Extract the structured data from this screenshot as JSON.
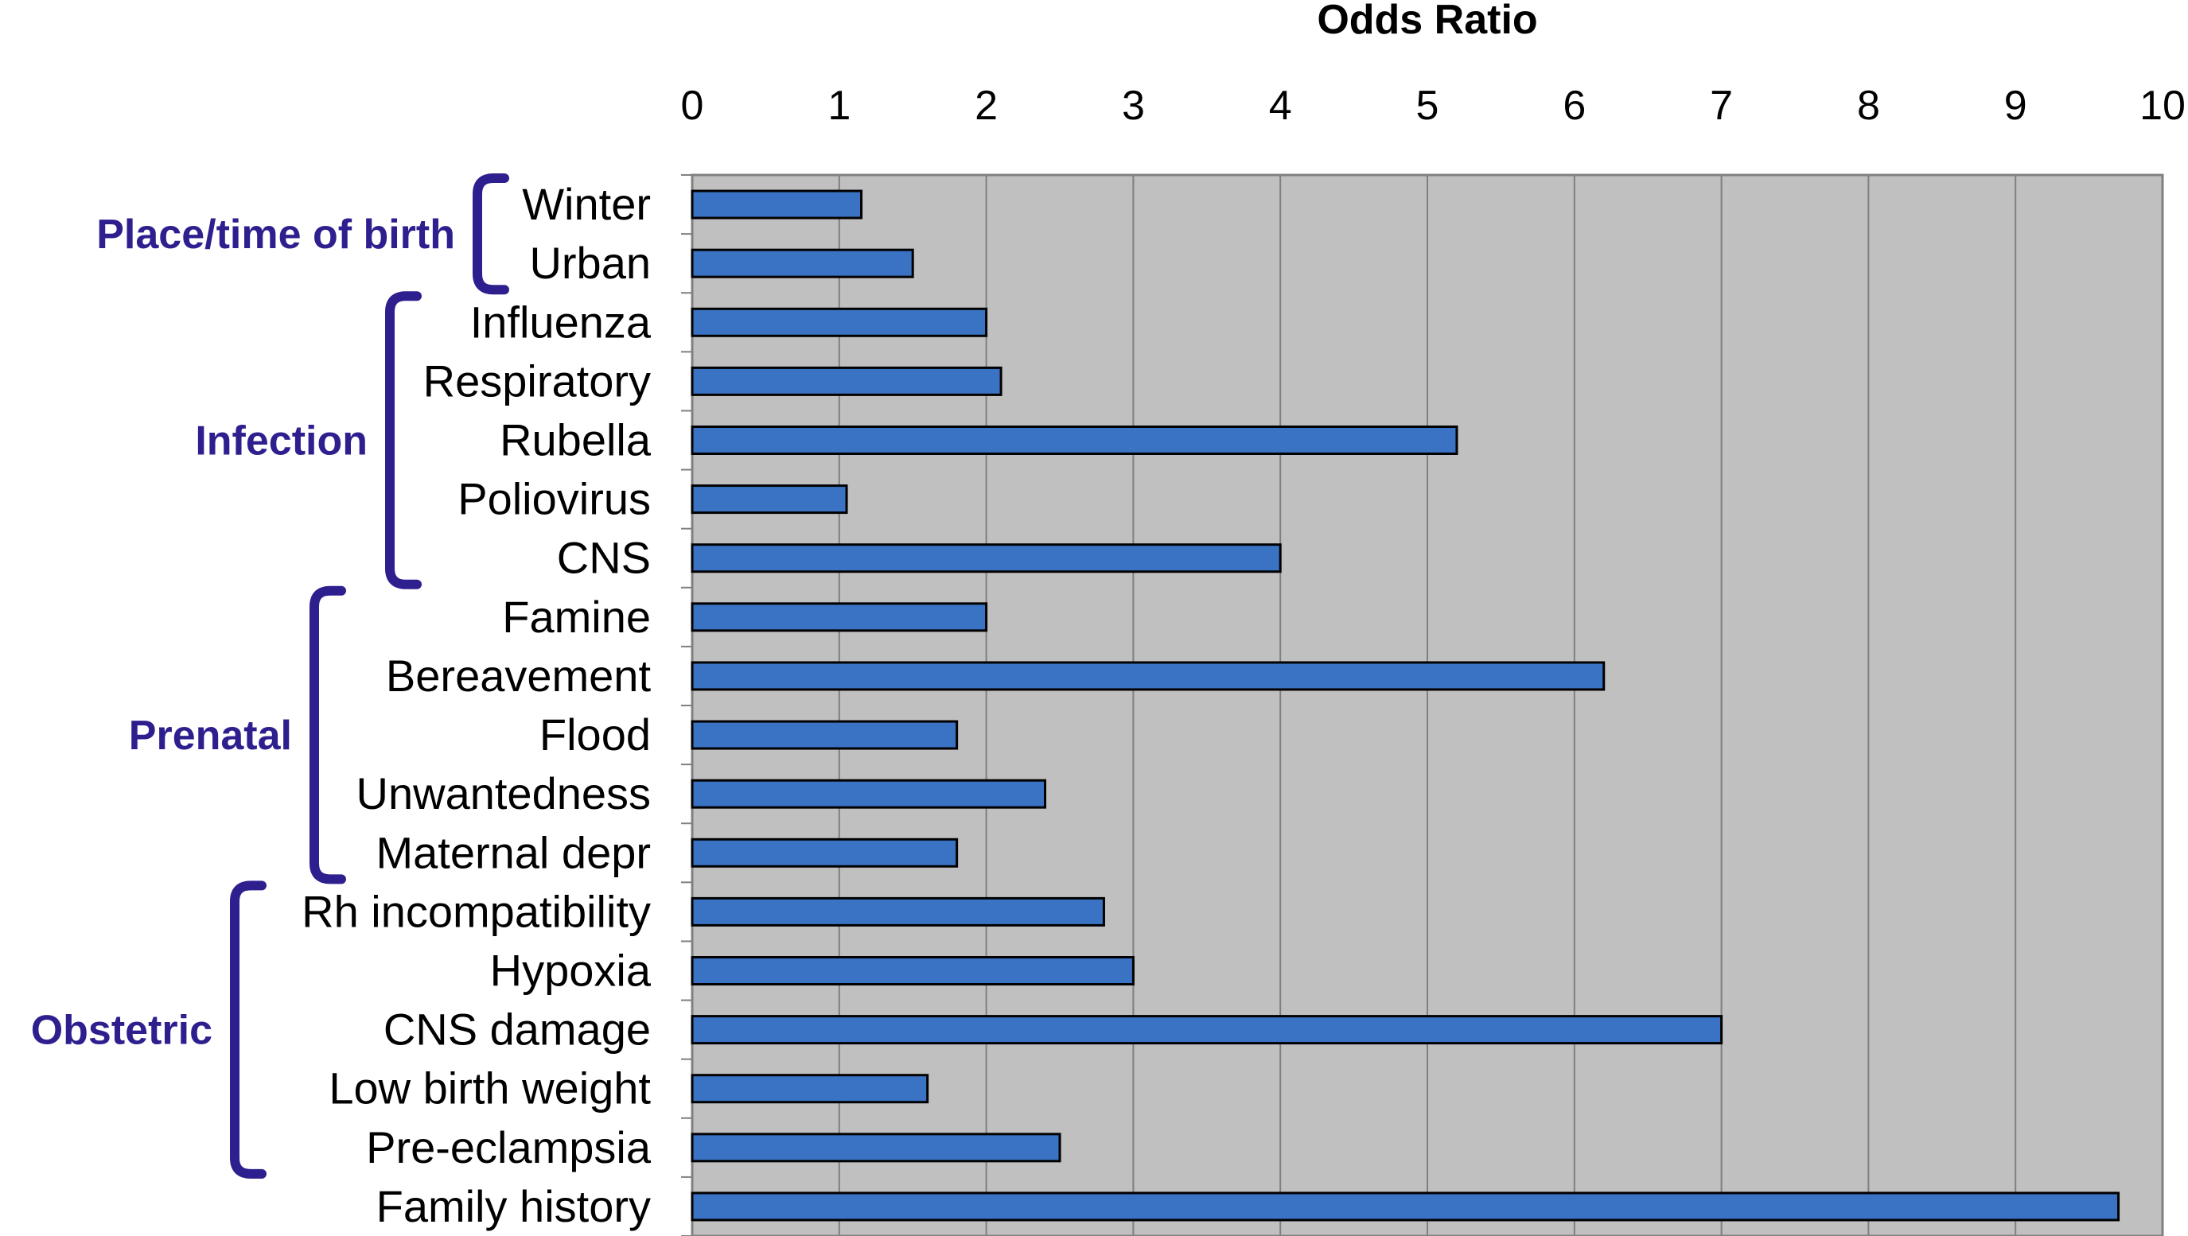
{
  "chart_data": {
    "type": "bar",
    "orientation": "horizontal",
    "title": "",
    "xlabel": "Odds Ratio",
    "ylabel": "",
    "xlim": [
      0,
      10
    ],
    "x_ticks": [
      "0",
      "1",
      "2",
      "3",
      "4",
      "5",
      "6",
      "7",
      "8",
      "9",
      "10"
    ],
    "x_axis_position": "top",
    "grid": true,
    "legend": "none",
    "categories": [
      "Winter",
      "Urban",
      "Influenza",
      "Respiratory",
      "Rubella",
      "Poliovirus",
      "CNS",
      "Famine",
      "Bereavement",
      "Flood",
      "Unwantedness",
      "Maternal depr",
      "Rh incompatibility",
      "Hypoxia",
      "CNS damage",
      "Low birth weight",
      "Pre-eclampsia",
      "Family history"
    ],
    "values": [
      1.15,
      1.5,
      2.0,
      2.1,
      5.2,
      1.05,
      4.0,
      2.0,
      6.2,
      1.8,
      2.4,
      1.8,
      2.8,
      3.0,
      7.0,
      1.6,
      2.5,
      9.7
    ],
    "groups": [
      {
        "label": "Place/time of birth",
        "first": 0,
        "last": 1
      },
      {
        "label": "Infection",
        "first": 2,
        "last": 6
      },
      {
        "label": "Prenatal",
        "first": 7,
        "last": 11
      },
      {
        "label": "Obstetric",
        "first": 12,
        "last": 16
      }
    ],
    "colors": {
      "bar": "#3a73c3",
      "plot_background": "#c0c0c0",
      "group_label": "#2e1f8f",
      "grid": "#7f7f7f"
    }
  }
}
